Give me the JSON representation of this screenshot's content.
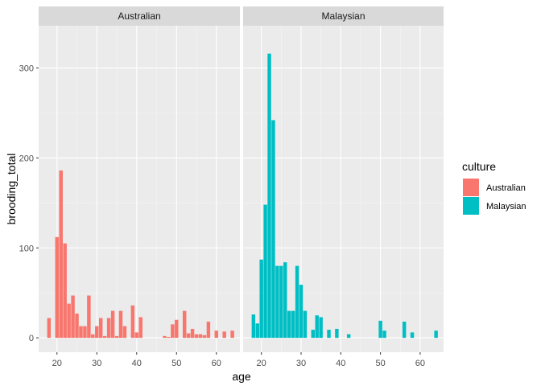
{
  "chart_data": {
    "type": "bar",
    "xlabel": "age",
    "ylabel": "brooding_total",
    "xlim": [
      15.4,
      65.9
    ],
    "ylim": [
      -16,
      347
    ],
    "x_ticks": [
      20,
      30,
      40,
      50,
      60
    ],
    "y_ticks": [
      0,
      100,
      200,
      300
    ],
    "grid": true,
    "legend": {
      "title": "culture",
      "placement": "right"
    },
    "panels": [
      {
        "strip": "Australian",
        "color": "#F8766D",
        "series": {
          "name": "Australian",
          "points": [
            [
              18,
              22
            ],
            [
              20,
              112
            ],
            [
              21,
              186
            ],
            [
              22,
              105
            ],
            [
              23,
              38
            ],
            [
              24,
              47
            ],
            [
              25,
              27
            ],
            [
              26,
              13
            ],
            [
              27,
              13
            ],
            [
              28,
              47
            ],
            [
              29,
              4
            ],
            [
              30,
              13
            ],
            [
              31,
              22
            ],
            [
              32,
              2
            ],
            [
              33,
              22
            ],
            [
              34,
              30
            ],
            [
              35,
              2
            ],
            [
              36,
              30
            ],
            [
              37,
              13
            ],
            [
              39,
              36
            ],
            [
              40,
              6
            ],
            [
              41,
              23
            ],
            [
              47,
              2
            ],
            [
              48,
              1
            ],
            [
              49,
              15
            ],
            [
              50,
              20
            ],
            [
              52,
              30
            ],
            [
              53,
              5
            ],
            [
              54,
              10
            ],
            [
              55,
              4
            ],
            [
              56,
              4
            ],
            [
              57,
              3
            ],
            [
              58,
              18
            ],
            [
              60,
              8
            ],
            [
              62,
              7
            ],
            [
              64,
              8
            ]
          ]
        }
      },
      {
        "strip": "Malaysian",
        "color": "#00BFC4",
        "series": {
          "name": "Malaysian",
          "points": [
            [
              18,
              26
            ],
            [
              19,
              16
            ],
            [
              20,
              87
            ],
            [
              21,
              148
            ],
            [
              22,
              316
            ],
            [
              23,
              242
            ],
            [
              24,
              80
            ],
            [
              25,
              80
            ],
            [
              26,
              84
            ],
            [
              27,
              30
            ],
            [
              28,
              30
            ],
            [
              29,
              80
            ],
            [
              30,
              59
            ],
            [
              31,
              30
            ],
            [
              33,
              9
            ],
            [
              34,
              25
            ],
            [
              35,
              23
            ],
            [
              37,
              9
            ],
            [
              39,
              10
            ],
            [
              42,
              4
            ],
            [
              50,
              19
            ],
            [
              51,
              8
            ],
            [
              56,
              18
            ],
            [
              58,
              6
            ],
            [
              64,
              8
            ]
          ]
        }
      }
    ]
  }
}
